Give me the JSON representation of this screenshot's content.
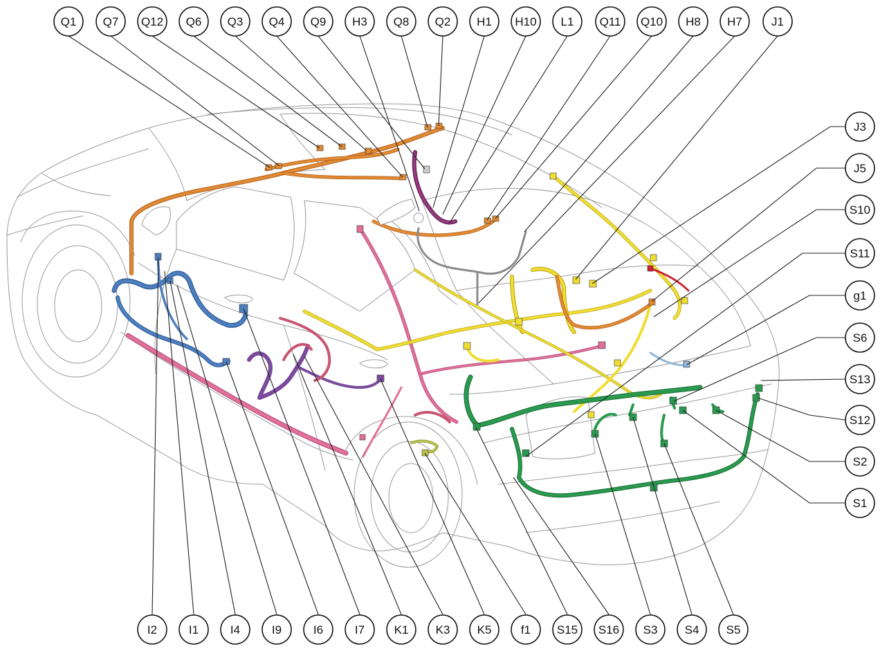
{
  "colors": {
    "roof_harness": "#e08a35",
    "roof_harness_dark": "#b35e17",
    "instrument_harness": "#4d7fbf",
    "instrument_harness_dark": "#2c5a95",
    "floor_harness": "#e0709a",
    "floor_harness_dark": "#b14a73",
    "door_harness": "#7a4a9c",
    "rear_door_harness": "#c8566f",
    "luggage_harness": "#f0dd33",
    "luggage_harness_dark": "#b7a212",
    "rear_harness": "#2a9a4f",
    "rear_harness_dark": "#176b33",
    "antenna_cable": "#8a8a8a",
    "overhead_maroon": "#6a1e55",
    "fuel_harness": "#b9c34a",
    "light_blue": "#8fb7d8",
    "red": "#cc2233"
  },
  "callouts": [
    {
      "id": "Q1",
      "label": "Q1"
    },
    {
      "id": "Q7",
      "label": "Q7"
    },
    {
      "id": "Q12",
      "label": "Q12"
    },
    {
      "id": "Q6",
      "label": "Q6"
    },
    {
      "id": "Q3",
      "label": "Q3"
    },
    {
      "id": "Q4",
      "label": "Q4"
    },
    {
      "id": "Q9",
      "label": "Q9"
    },
    {
      "id": "H3",
      "label": "H3"
    },
    {
      "id": "Q8",
      "label": "Q8"
    },
    {
      "id": "Q2",
      "label": "Q2"
    },
    {
      "id": "H1",
      "label": "H1"
    },
    {
      "id": "H10",
      "label": "H10"
    },
    {
      "id": "L1",
      "label": "L1"
    },
    {
      "id": "Q11",
      "label": "Q11"
    },
    {
      "id": "Q10",
      "label": "Q10"
    },
    {
      "id": "H8",
      "label": "H8"
    },
    {
      "id": "H7",
      "label": "H7"
    },
    {
      "id": "J1",
      "label": "J1"
    },
    {
      "id": "J3",
      "label": "J3"
    },
    {
      "id": "J5",
      "label": "J5"
    },
    {
      "id": "S10",
      "label": "S10"
    },
    {
      "id": "S11",
      "label": "S11"
    },
    {
      "id": "g1",
      "label": "g1"
    },
    {
      "id": "S6",
      "label": "S6"
    },
    {
      "id": "S13",
      "label": "S13"
    },
    {
      "id": "S12",
      "label": "S12"
    },
    {
      "id": "S2",
      "label": "S2"
    },
    {
      "id": "S1",
      "label": "S1"
    },
    {
      "id": "I2",
      "label": "I2"
    },
    {
      "id": "I1",
      "label": "I1"
    },
    {
      "id": "I4",
      "label": "I4"
    },
    {
      "id": "I9",
      "label": "I9"
    },
    {
      "id": "I6",
      "label": "I6"
    },
    {
      "id": "I7",
      "label": "I7"
    },
    {
      "id": "K1",
      "label": "K1"
    },
    {
      "id": "K3",
      "label": "K3"
    },
    {
      "id": "K5",
      "label": "K5"
    },
    {
      "id": "f1",
      "label": "f1"
    },
    {
      "id": "S15",
      "label": "S15"
    },
    {
      "id": "S16",
      "label": "S16"
    },
    {
      "id": "S3",
      "label": "S3"
    },
    {
      "id": "S4",
      "label": "S4"
    },
    {
      "id": "S5",
      "label": "S5"
    }
  ]
}
